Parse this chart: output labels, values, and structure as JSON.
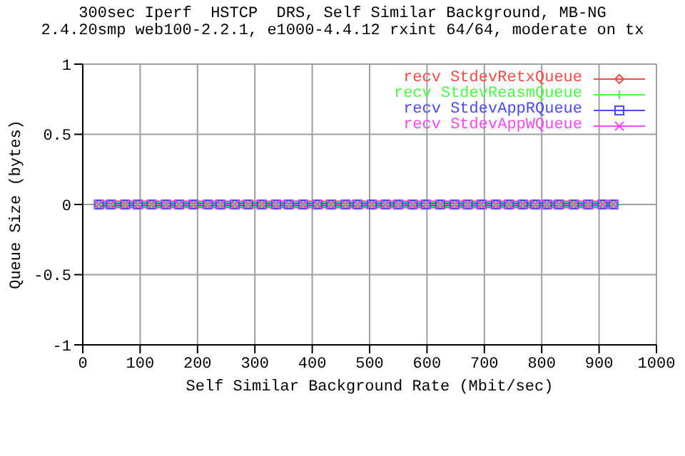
{
  "chart_data": {
    "type": "line",
    "title": "300sec Iperf  HSTCP  DRS, Self Similar Background, MB-NG",
    "subtitle": "2.4.20smp web100-2.2.1, e1000-4.4.12 rxint 64/64, moderate on tx",
    "xlabel": "Self Similar Background Rate (Mbit/sec)",
    "ylabel": "Queue Size (bytes)",
    "x": [
      28,
      49,
      74,
      96,
      120,
      145,
      168,
      193,
      218,
      240,
      265,
      288,
      312,
      337,
      359,
      384,
      409,
      433,
      458,
      479,
      504,
      528,
      550,
      575,
      598,
      623,
      648,
      671,
      695,
      720,
      743,
      767,
      789,
      809,
      830,
      856,
      881,
      906,
      925
    ],
    "series": [
      {
        "name": "recv StdevRetxQueue",
        "color": "#ff4a4a",
        "marker": "diamond",
        "values": [
          0,
          0,
          0,
          0,
          0,
          0,
          0,
          0,
          0,
          0,
          0,
          0,
          0,
          0,
          0,
          0,
          0,
          0,
          0,
          0,
          0,
          0,
          0,
          0,
          0,
          0,
          0,
          0,
          0,
          0,
          0,
          0,
          0,
          0,
          0,
          0,
          0,
          0,
          0
        ]
      },
      {
        "name": "recv StdevReasmQueue",
        "color": "#4aff4a",
        "marker": "cross",
        "values": [
          0,
          0,
          0,
          0,
          0,
          0,
          0,
          0,
          0,
          0,
          0,
          0,
          0,
          0,
          0,
          0,
          0,
          0,
          0,
          0,
          0,
          0,
          0,
          0,
          0,
          0,
          0,
          0,
          0,
          0,
          0,
          0,
          0,
          0,
          0,
          0,
          0,
          0,
          0
        ]
      },
      {
        "name": "recv StdevAppRQueue",
        "color": "#4a4aff",
        "marker": "square",
        "values": [
          0,
          0,
          0,
          0,
          0,
          0,
          0,
          0,
          0,
          0,
          0,
          0,
          0,
          0,
          0,
          0,
          0,
          0,
          0,
          0,
          0,
          0,
          0,
          0,
          0,
          0,
          0,
          0,
          0,
          0,
          0,
          0,
          0,
          0,
          0,
          0,
          0,
          0,
          0
        ]
      },
      {
        "name": "recv StdevAppWQueue",
        "color": "#ff4aff",
        "marker": "x",
        "values": [
          0,
          0,
          0,
          0,
          0,
          0,
          0,
          0,
          0,
          0,
          0,
          0,
          0,
          0,
          0,
          0,
          0,
          0,
          0,
          0,
          0,
          0,
          0,
          0,
          0,
          0,
          0,
          0,
          0,
          0,
          0,
          0,
          0,
          0,
          0,
          0,
          0,
          0,
          0
        ]
      }
    ],
    "xlim": [
      0,
      1000
    ],
    "xticks": [
      0,
      100,
      200,
      300,
      400,
      500,
      600,
      700,
      800,
      900,
      1000
    ],
    "ylim": [
      -1,
      1
    ],
    "yticks": [
      -1,
      -0.5,
      0,
      0.5,
      1
    ],
    "grid": true,
    "legend": "top right",
    "line_style": "solid"
  }
}
